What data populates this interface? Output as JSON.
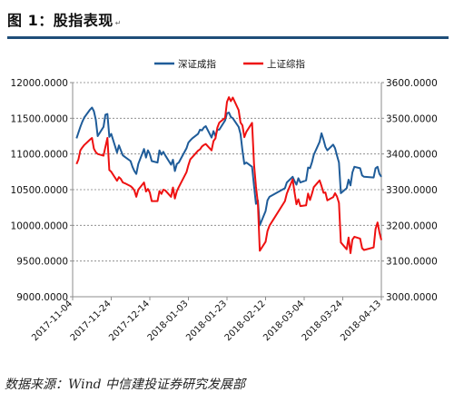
{
  "figure": {
    "title": "图 1：股指表现",
    "title_mark": "↵",
    "source": "数据来源：Wind 中信建投证券研究发展部"
  },
  "colors": {
    "szse": "#1f5c99",
    "sse": "#ee1111",
    "rule": "#1f4e79"
  },
  "chart_data": {
    "type": "line",
    "legend_position": "top-center",
    "grid": true,
    "x_ticks": [
      "2017-11-04",
      "2017-11-24",
      "2017-12-14",
      "2018-01-03",
      "2018-01-23",
      "2018-02-12",
      "2018-03-04",
      "2018-03-24",
      "2018-04-13"
    ],
    "xlim": [
      "2017-11-04",
      "2018-04-13"
    ],
    "y_left": {
      "lim": [
        9000,
        12000
      ],
      "ticks": [
        "9000.0000",
        "9500.0000",
        "10000.0000",
        "10500.0000",
        "11000.0000",
        "11500.0000",
        "12000.0000"
      ]
    },
    "y_right": {
      "lim": [
        3000,
        3600
      ],
      "ticks": [
        "3000.0000",
        "3100.0000",
        "3200.0000",
        "3300.0000",
        "3400.0000",
        "3500.0000",
        "3600.0000"
      ]
    },
    "series": [
      {
        "name": "深证成指",
        "axis": "left",
        "color": "#1f5c99",
        "points": [
          [
            "2017-11-06",
            11220
          ],
          [
            "2017-11-07",
            11300
          ],
          [
            "2017-11-08",
            11380
          ],
          [
            "2017-11-09",
            11450
          ],
          [
            "2017-11-10",
            11510
          ],
          [
            "2017-11-13",
            11620
          ],
          [
            "2017-11-14",
            11650
          ],
          [
            "2017-11-15",
            11600
          ],
          [
            "2017-11-16",
            11480
          ],
          [
            "2017-11-17",
            11250
          ],
          [
            "2017-11-20",
            11380
          ],
          [
            "2017-11-21",
            11550
          ],
          [
            "2017-11-22",
            11560
          ],
          [
            "2017-11-23",
            11240
          ],
          [
            "2017-11-24",
            11280
          ],
          [
            "2017-11-27",
            11020
          ],
          [
            "2017-11-28",
            11120
          ],
          [
            "2017-11-29",
            11050
          ],
          [
            "2017-11-30",
            10980
          ],
          [
            "2017-12-01",
            10960
          ],
          [
            "2017-12-04",
            10900
          ],
          [
            "2017-12-05",
            10820
          ],
          [
            "2017-12-06",
            10760
          ],
          [
            "2017-12-07",
            10720
          ],
          [
            "2017-12-08",
            10860
          ],
          [
            "2017-12-11",
            11070
          ],
          [
            "2017-12-12",
            10950
          ],
          [
            "2017-12-13",
            11050
          ],
          [
            "2017-12-14",
            11000
          ],
          [
            "2017-12-15",
            10900
          ],
          [
            "2017-12-18",
            10880
          ],
          [
            "2017-12-19",
            11050
          ],
          [
            "2017-12-20",
            10990
          ],
          [
            "2017-12-21",
            11030
          ],
          [
            "2017-12-22",
            10980
          ],
          [
            "2017-12-25",
            10850
          ],
          [
            "2017-12-26",
            10920
          ],
          [
            "2017-12-27",
            10760
          ],
          [
            "2017-12-28",
            10860
          ],
          [
            "2017-12-29",
            10880
          ],
          [
            "2018-01-02",
            11080
          ],
          [
            "2018-01-03",
            11160
          ],
          [
            "2018-01-04",
            11190
          ],
          [
            "2018-01-05",
            11220
          ],
          [
            "2018-01-08",
            11280
          ],
          [
            "2018-01-09",
            11340
          ],
          [
            "2018-01-10",
            11330
          ],
          [
            "2018-01-11",
            11370
          ],
          [
            "2018-01-12",
            11390
          ],
          [
            "2018-01-15",
            11230
          ],
          [
            "2018-01-16",
            11320
          ],
          [
            "2018-01-17",
            11250
          ],
          [
            "2018-01-18",
            11340
          ],
          [
            "2018-01-19",
            11340
          ],
          [
            "2018-01-22",
            11470
          ],
          [
            "2018-01-23",
            11570
          ],
          [
            "2018-01-24",
            11580
          ],
          [
            "2018-01-25",
            11520
          ],
          [
            "2018-01-26",
            11500
          ],
          [
            "2018-01-29",
            11380
          ],
          [
            "2018-01-30",
            11280
          ],
          [
            "2018-01-31",
            11050
          ],
          [
            "2018-02-01",
            10860
          ],
          [
            "2018-02-02",
            10880
          ],
          [
            "2018-02-05",
            10820
          ],
          [
            "2018-02-06",
            10550
          ],
          [
            "2018-02-07",
            10300
          ],
          [
            "2018-02-08",
            10350
          ],
          [
            "2018-02-09",
            10000
          ],
          [
            "2018-02-12",
            10200
          ],
          [
            "2018-02-13",
            10350
          ],
          [
            "2018-02-14",
            10400
          ],
          [
            "2018-02-22",
            10520
          ],
          [
            "2018-02-23",
            10600
          ],
          [
            "2018-02-26",
            10680
          ],
          [
            "2018-02-27",
            10620
          ],
          [
            "2018-02-28",
            10570
          ],
          [
            "2018-03-01",
            10660
          ],
          [
            "2018-03-02",
            10600
          ],
          [
            "2018-03-05",
            10630
          ],
          [
            "2018-03-06",
            10810
          ],
          [
            "2018-03-07",
            10800
          ],
          [
            "2018-03-08",
            10880
          ],
          [
            "2018-03-09",
            10990
          ],
          [
            "2018-03-12",
            11170
          ],
          [
            "2018-03-13",
            11290
          ],
          [
            "2018-03-14",
            11200
          ],
          [
            "2018-03-15",
            11100
          ],
          [
            "2018-03-16",
            11050
          ],
          [
            "2018-03-19",
            11130
          ],
          [
            "2018-03-20",
            11080
          ],
          [
            "2018-03-21",
            10980
          ],
          [
            "2018-03-22",
            10880
          ],
          [
            "2018-03-23",
            10450
          ],
          [
            "2018-03-26",
            10520
          ],
          [
            "2018-03-27",
            10640
          ],
          [
            "2018-03-28",
            10560
          ],
          [
            "2018-03-29",
            10740
          ],
          [
            "2018-03-30",
            10820
          ],
          [
            "2018-04-02",
            10800
          ],
          [
            "2018-04-03",
            10700
          ],
          [
            "2018-04-04",
            10680
          ],
          [
            "2018-04-09",
            10670
          ],
          [
            "2018-04-10",
            10800
          ],
          [
            "2018-04-11",
            10820
          ],
          [
            "2018-04-12",
            10720
          ],
          [
            "2018-04-13",
            10680
          ]
        ]
      },
      {
        "name": "上证综指",
        "axis": "right",
        "color": "#ee1111",
        "points": [
          [
            "2017-11-06",
            3372
          ],
          [
            "2017-11-07",
            3385
          ],
          [
            "2017-11-08",
            3410
          ],
          [
            "2017-11-09",
            3418
          ],
          [
            "2017-11-10",
            3425
          ],
          [
            "2017-11-13",
            3440
          ],
          [
            "2017-11-14",
            3445
          ],
          [
            "2017-11-15",
            3415
          ],
          [
            "2017-11-16",
            3405
          ],
          [
            "2017-11-17",
            3400
          ],
          [
            "2017-11-20",
            3395
          ],
          [
            "2017-11-21",
            3420
          ],
          [
            "2017-11-22",
            3445
          ],
          [
            "2017-11-23",
            3355
          ],
          [
            "2017-11-24",
            3350
          ],
          [
            "2017-11-27",
            3325
          ],
          [
            "2017-11-28",
            3335
          ],
          [
            "2017-11-29",
            3330
          ],
          [
            "2017-11-30",
            3320
          ],
          [
            "2017-12-01",
            3318
          ],
          [
            "2017-12-04",
            3310
          ],
          [
            "2017-12-05",
            3305
          ],
          [
            "2017-12-06",
            3298
          ],
          [
            "2017-12-07",
            3280
          ],
          [
            "2017-12-08",
            3300
          ],
          [
            "2017-12-11",
            3320
          ],
          [
            "2017-12-12",
            3295
          ],
          [
            "2017-12-13",
            3302
          ],
          [
            "2017-12-14",
            3292
          ],
          [
            "2017-12-15",
            3268
          ],
          [
            "2017-12-18",
            3268
          ],
          [
            "2017-12-19",
            3296
          ],
          [
            "2017-12-20",
            3288
          ],
          [
            "2017-12-21",
            3300
          ],
          [
            "2017-12-22",
            3298
          ],
          [
            "2017-12-25",
            3280
          ],
          [
            "2017-12-26",
            3306
          ],
          [
            "2017-12-27",
            3275
          ],
          [
            "2017-12-28",
            3296
          ],
          [
            "2017-12-29",
            3307
          ],
          [
            "2018-01-02",
            3349
          ],
          [
            "2018-01-03",
            3369
          ],
          [
            "2018-01-04",
            3385
          ],
          [
            "2018-01-05",
            3391
          ],
          [
            "2018-01-08",
            3409
          ],
          [
            "2018-01-09",
            3413
          ],
          [
            "2018-01-10",
            3421
          ],
          [
            "2018-01-11",
            3425
          ],
          [
            "2018-01-12",
            3428
          ],
          [
            "2018-01-15",
            3410
          ],
          [
            "2018-01-16",
            3436
          ],
          [
            "2018-01-17",
            3444
          ],
          [
            "2018-01-18",
            3474
          ],
          [
            "2018-01-19",
            3488
          ],
          [
            "2018-01-22",
            3501
          ],
          [
            "2018-01-23",
            3546
          ],
          [
            "2018-01-24",
            3559
          ],
          [
            "2018-01-25",
            3548
          ],
          [
            "2018-01-26",
            3558
          ],
          [
            "2018-01-29",
            3523
          ],
          [
            "2018-01-30",
            3488
          ],
          [
            "2018-01-31",
            3480
          ],
          [
            "2018-02-01",
            3447
          ],
          [
            "2018-02-02",
            3462
          ],
          [
            "2018-02-05",
            3487
          ],
          [
            "2018-02-06",
            3370
          ],
          [
            "2018-02-07",
            3309
          ],
          [
            "2018-02-08",
            3262
          ],
          [
            "2018-02-09",
            3129
          ],
          [
            "2018-02-12",
            3154
          ],
          [
            "2018-02-13",
            3184
          ],
          [
            "2018-02-14",
            3199
          ],
          [
            "2018-02-22",
            3268
          ],
          [
            "2018-02-23",
            3289
          ],
          [
            "2018-02-26",
            3329
          ],
          [
            "2018-02-27",
            3292
          ],
          [
            "2018-02-28",
            3259
          ],
          [
            "2018-03-01",
            3273
          ],
          [
            "2018-03-02",
            3254
          ],
          [
            "2018-03-05",
            3256
          ],
          [
            "2018-03-06",
            3289
          ],
          [
            "2018-03-07",
            3271
          ],
          [
            "2018-03-08",
            3288
          ],
          [
            "2018-03-09",
            3307
          ],
          [
            "2018-03-12",
            3326
          ],
          [
            "2018-03-13",
            3310
          ],
          [
            "2018-03-14",
            3291
          ],
          [
            "2018-03-15",
            3292
          ],
          [
            "2018-03-16",
            3270
          ],
          [
            "2018-03-19",
            3279
          ],
          [
            "2018-03-20",
            3290
          ],
          [
            "2018-03-21",
            3281
          ],
          [
            "2018-03-22",
            3263
          ],
          [
            "2018-03-23",
            3152
          ],
          [
            "2018-03-26",
            3133
          ],
          [
            "2018-03-27",
            3166
          ],
          [
            "2018-03-28",
            3122
          ],
          [
            "2018-03-29",
            3160
          ],
          [
            "2018-03-30",
            3168
          ],
          [
            "2018-04-02",
            3163
          ],
          [
            "2018-04-03",
            3136
          ],
          [
            "2018-04-04",
            3131
          ],
          [
            "2018-04-09",
            3138
          ],
          [
            "2018-04-10",
            3190
          ],
          [
            "2018-04-11",
            3208
          ],
          [
            "2018-04-12",
            3180
          ],
          [
            "2018-04-13",
            3159
          ]
        ]
      }
    ]
  }
}
